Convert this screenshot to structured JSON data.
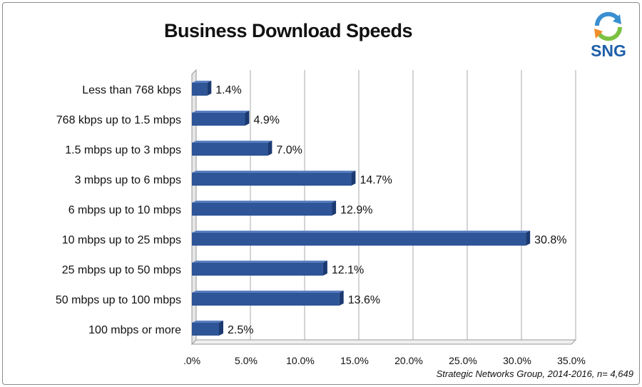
{
  "chart_data": {
    "type": "bar",
    "orientation": "horizontal",
    "title": "Business Download Speeds",
    "categories": [
      "Less than 768 kbps",
      "768 kbps up to 1.5 mbps",
      "1.5 mbps up to 3 mbps",
      "3 mbps up to 6 mbps",
      "6 mbps up to 10 mbps",
      "10 mbps up to 25 mbps",
      "25 mbps up to 50 mbps",
      "50 mbps up to 100 mbps",
      "100 mbps or more"
    ],
    "values": [
      1.4,
      4.9,
      7.0,
      14.7,
      12.9,
      30.8,
      12.1,
      13.6,
      2.5
    ],
    "value_labels": [
      "1.4%",
      "4.9%",
      "7.0%",
      "14.7%",
      "12.9%",
      "30.8%",
      "12.1%",
      "13.6%",
      "2.5%"
    ],
    "xlim": [
      0,
      35
    ],
    "x_ticks": [
      0,
      5,
      10,
      15,
      20,
      25,
      30,
      35
    ],
    "x_tick_labels": [
      ".0%",
      "5.0%",
      "10.0%",
      "15.0%",
      "20.0%",
      "25.0%",
      "30.0%",
      "35.0%"
    ],
    "xlabel": "",
    "ylabel": "",
    "grid": true,
    "bar_color": "#2e5597",
    "source": "Strategic Networks Group, 2014-2016, n= 4,649"
  },
  "logo": {
    "text": "SNG",
    "colors": [
      "#3a8fd1",
      "#7cc242",
      "#f28c28"
    ]
  }
}
